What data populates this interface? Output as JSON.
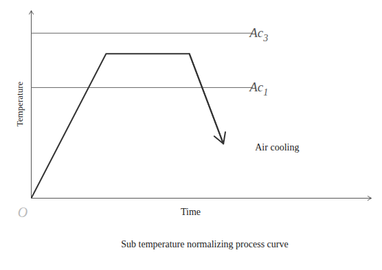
{
  "chart_data": {
    "type": "line",
    "title": "Sub temperature normalizing process curve",
    "x_label": "Time",
    "y_label": "Temperature",
    "origin_label": "O",
    "x": [
      0,
      22,
      46.5,
      56.5
    ],
    "values": [
      0,
      77,
      77,
      29
    ],
    "xlim": [
      0,
      100
    ],
    "ylim": [
      0,
      100
    ],
    "xticks": [],
    "yticks": [],
    "tick_labels": false,
    "grid": false,
    "marker": "arrow",
    "color": "#333333",
    "reference_lines": [
      {
        "label": "Ac3",
        "y": 88,
        "x": [
          0,
          65
        ]
      },
      {
        "label": "Ac1",
        "y": 59,
        "x": [
          0,
          65
        ]
      }
    ],
    "annotations": [
      {
        "text": "Air cooling",
        "x": 65,
        "y": 27
      }
    ]
  }
}
